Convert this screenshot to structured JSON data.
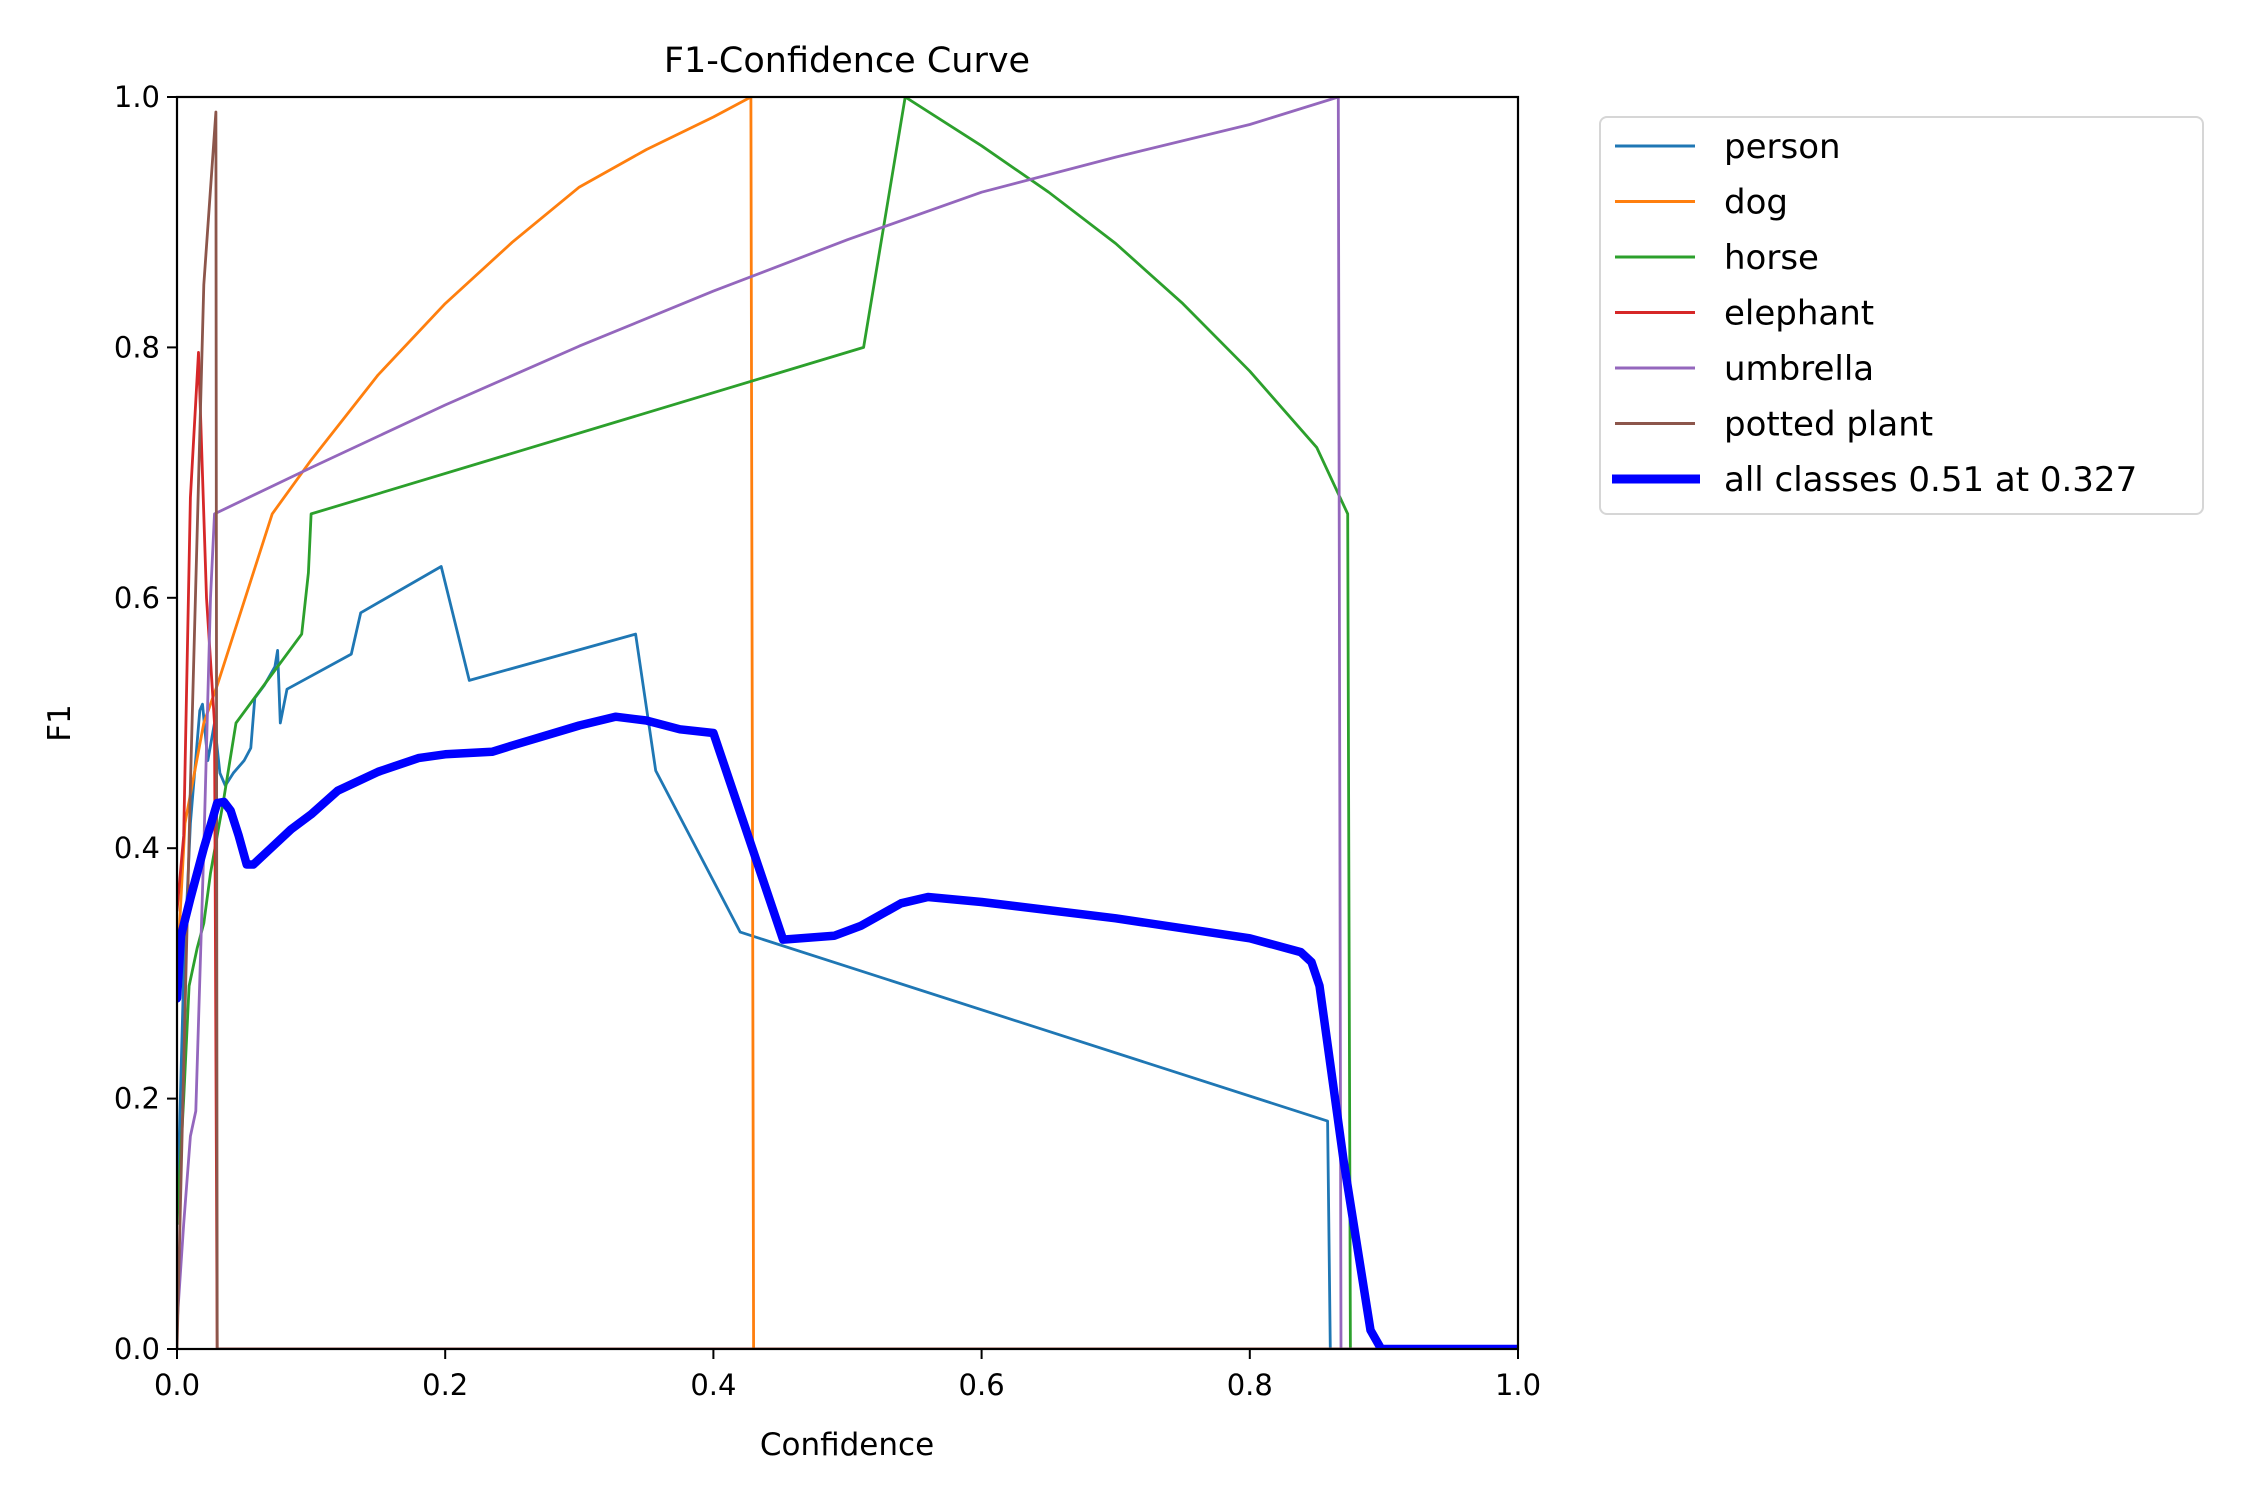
{
  "chart_data": {
    "type": "line",
    "title": "F1-Confidence Curve",
    "xlabel": "Confidence",
    "ylabel": "F1",
    "xlim": [
      0.0,
      1.0
    ],
    "ylim": [
      0.0,
      1.0
    ],
    "xticks": [
      "0.0",
      "0.2",
      "0.4",
      "0.6",
      "0.8",
      "1.0"
    ],
    "yticks": [
      "0.0",
      "0.2",
      "0.4",
      "0.6",
      "0.8",
      "1.0"
    ],
    "grid": false,
    "legend_position": "outside-top-right",
    "series": [
      {
        "name": "person",
        "color": "#1f77b4",
        "width": "thin",
        "points": [
          [
            0.0,
            0.1
          ],
          [
            0.005,
            0.3
          ],
          [
            0.01,
            0.42
          ],
          [
            0.017,
            0.51
          ],
          [
            0.019,
            0.515
          ],
          [
            0.023,
            0.47
          ],
          [
            0.028,
            0.5
          ],
          [
            0.032,
            0.46
          ],
          [
            0.036,
            0.45
          ],
          [
            0.042,
            0.46
          ],
          [
            0.05,
            0.47
          ],
          [
            0.055,
            0.48
          ],
          [
            0.058,
            0.52
          ],
          [
            0.065,
            0.53
          ],
          [
            0.073,
            0.545
          ],
          [
            0.075,
            0.558
          ],
          [
            0.077,
            0.5
          ],
          [
            0.082,
            0.527
          ],
          [
            0.13,
            0.555
          ],
          [
            0.137,
            0.588
          ],
          [
            0.197,
            0.625
          ],
          [
            0.218,
            0.534
          ],
          [
            0.342,
            0.571
          ],
          [
            0.357,
            0.462
          ],
          [
            0.42,
            0.333
          ],
          [
            0.858,
            0.182
          ],
          [
            0.86,
            0.0
          ],
          [
            1.0,
            0.0
          ]
        ]
      },
      {
        "name": "dog",
        "color": "#ff7f0e",
        "width": "thin",
        "points": [
          [
            0.0,
            0.3
          ],
          [
            0.006,
            0.42
          ],
          [
            0.02,
            0.5
          ],
          [
            0.03,
            0.53
          ],
          [
            0.071,
            0.667
          ],
          [
            0.1,
            0.71
          ],
          [
            0.15,
            0.778
          ],
          [
            0.2,
            0.835
          ],
          [
            0.25,
            0.884
          ],
          [
            0.3,
            0.928
          ],
          [
            0.35,
            0.958
          ],
          [
            0.4,
            0.984
          ],
          [
            0.428,
            1.0
          ],
          [
            0.43,
            0.0
          ],
          [
            1.0,
            0.0
          ]
        ]
      },
      {
        "name": "horse",
        "color": "#2ca02c",
        "width": "thin",
        "points": [
          [
            0.0,
            0.1
          ],
          [
            0.005,
            0.2
          ],
          [
            0.009,
            0.29
          ],
          [
            0.015,
            0.32
          ],
          [
            0.02,
            0.34
          ],
          [
            0.025,
            0.38
          ],
          [
            0.035,
            0.44
          ],
          [
            0.044,
            0.5
          ],
          [
            0.093,
            0.571
          ],
          [
            0.098,
            0.62
          ],
          [
            0.1,
            0.667
          ],
          [
            0.512,
            0.8
          ],
          [
            0.543,
            1.0
          ],
          [
            0.6,
            0.961
          ],
          [
            0.65,
            0.924
          ],
          [
            0.7,
            0.883
          ],
          [
            0.75,
            0.835
          ],
          [
            0.8,
            0.781
          ],
          [
            0.85,
            0.72
          ],
          [
            0.873,
            0.667
          ],
          [
            0.875,
            0.0
          ],
          [
            1.0,
            0.0
          ]
        ]
      },
      {
        "name": "elephant",
        "color": "#d62728",
        "width": "thin",
        "points": [
          [
            0.0,
            0.35
          ],
          [
            0.005,
            0.41
          ],
          [
            0.01,
            0.68
          ],
          [
            0.016,
            0.796
          ],
          [
            0.022,
            0.6
          ],
          [
            0.028,
            0.5
          ],
          [
            0.03,
            0.0
          ],
          [
            1.0,
            0.0
          ]
        ]
      },
      {
        "name": "umbrella",
        "color": "#9467bd",
        "width": "thin",
        "points": [
          [
            0.0,
            0.02
          ],
          [
            0.005,
            0.1
          ],
          [
            0.01,
            0.17
          ],
          [
            0.014,
            0.19
          ],
          [
            0.02,
            0.4
          ],
          [
            0.025,
            0.6
          ],
          [
            0.028,
            0.667
          ],
          [
            0.1,
            0.704
          ],
          [
            0.2,
            0.754
          ],
          [
            0.3,
            0.801
          ],
          [
            0.4,
            0.845
          ],
          [
            0.5,
            0.886
          ],
          [
            0.6,
            0.924
          ],
          [
            0.7,
            0.952
          ],
          [
            0.8,
            0.978
          ],
          [
            0.866,
            1.0
          ],
          [
            0.868,
            0.0
          ],
          [
            1.0,
            0.0
          ]
        ]
      },
      {
        "name": "potted plant",
        "color": "#8c564b",
        "width": "thin",
        "points": [
          [
            0.0,
            0.0
          ],
          [
            0.01,
            0.45
          ],
          [
            0.02,
            0.85
          ],
          [
            0.029,
            0.988
          ],
          [
            0.03,
            0.0
          ],
          [
            1.0,
            0.0
          ]
        ]
      },
      {
        "name": "all classes 0.51 at 0.327",
        "color": "#0000ff",
        "width": "thick",
        "points": [
          [
            0.0,
            0.28
          ],
          [
            0.003,
            0.33
          ],
          [
            0.01,
            0.36
          ],
          [
            0.02,
            0.4
          ],
          [
            0.03,
            0.436
          ],
          [
            0.035,
            0.437
          ],
          [
            0.04,
            0.43
          ],
          [
            0.046,
            0.41
          ],
          [
            0.052,
            0.387
          ],
          [
            0.057,
            0.387
          ],
          [
            0.07,
            0.4
          ],
          [
            0.085,
            0.415
          ],
          [
            0.1,
            0.427
          ],
          [
            0.12,
            0.446
          ],
          [
            0.15,
            0.461
          ],
          [
            0.18,
            0.472
          ],
          [
            0.2,
            0.475
          ],
          [
            0.235,
            0.477
          ],
          [
            0.25,
            0.482
          ],
          [
            0.3,
            0.498
          ],
          [
            0.327,
            0.505
          ],
          [
            0.35,
            0.502
          ],
          [
            0.375,
            0.495
          ],
          [
            0.4,
            0.492
          ],
          [
            0.452,
            0.327
          ],
          [
            0.49,
            0.33
          ],
          [
            0.51,
            0.338
          ],
          [
            0.54,
            0.356
          ],
          [
            0.56,
            0.361
          ],
          [
            0.6,
            0.357
          ],
          [
            0.7,
            0.344
          ],
          [
            0.8,
            0.328
          ],
          [
            0.838,
            0.317
          ],
          [
            0.846,
            0.309
          ],
          [
            0.852,
            0.29
          ],
          [
            0.87,
            0.15
          ],
          [
            0.89,
            0.015
          ],
          [
            0.898,
            0.0
          ],
          [
            1.0,
            0.0
          ]
        ]
      }
    ]
  }
}
